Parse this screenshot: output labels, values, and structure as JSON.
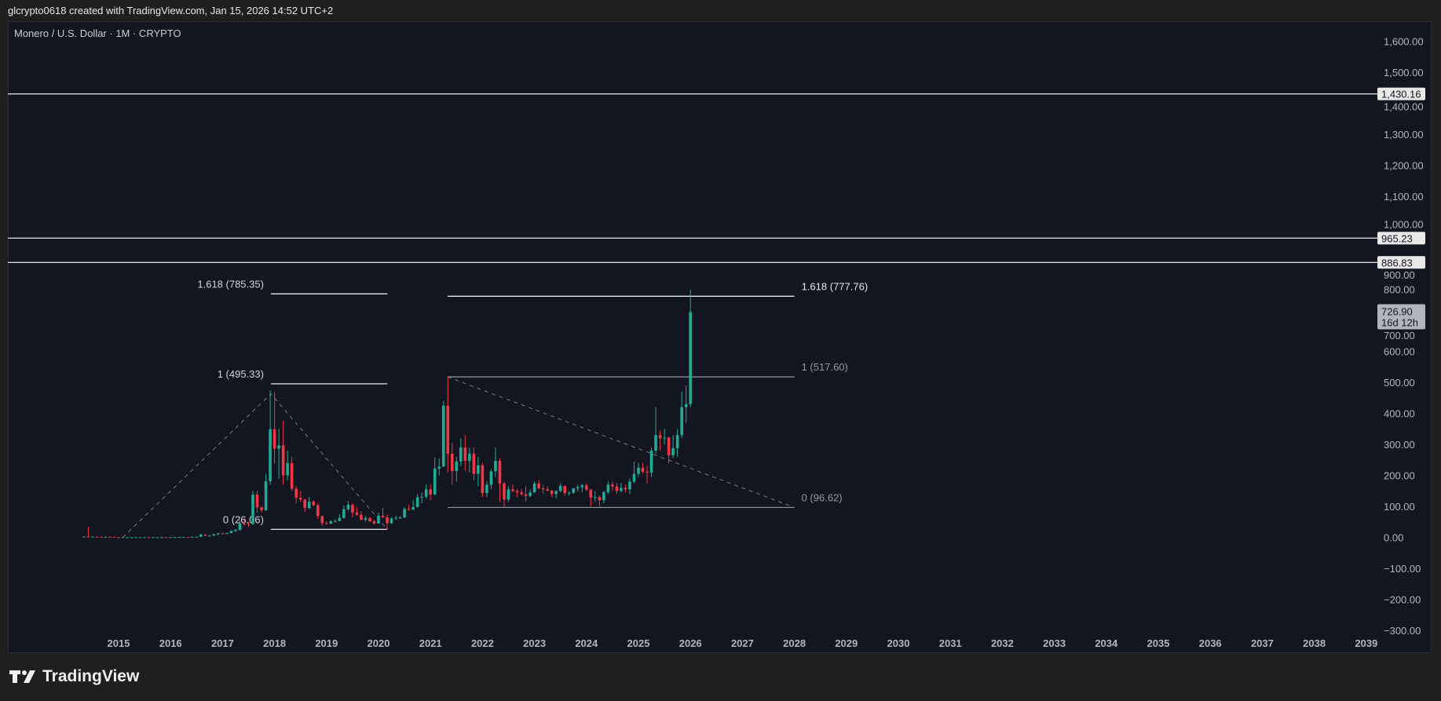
{
  "header": {
    "attribution": "glcrypto0618 created with TradingView.com, Jan 15, 2026 14:52 UTC+2"
  },
  "footer": {
    "brand": "TradingView"
  },
  "colors": {
    "background": "#131621",
    "up": "#22ab94",
    "down": "#f23645",
    "line": "#ffffff",
    "fib_grey": "#9598a1"
  },
  "chart_data": {
    "type": "candlestick",
    "title": "Monero / U.S. Dollar · 1M · CRYPTO",
    "ylim": [
      -300,
      1650
    ],
    "xlim": [
      2014,
      2039.3
    ],
    "y_ticks": [
      "1,600.00",
      "1,500.00",
      "1,400.00",
      "1,300.00",
      "1,200.00",
      "1,100.00",
      "1,000.00",
      "900.00",
      "800.00",
      "700.00",
      "600.00",
      "500.00",
      "400.00",
      "300.00",
      "200.00",
      "100.00",
      "0.00",
      "−100.00",
      "−200.00",
      "−300.00"
    ],
    "y_tick_values": [
      1600,
      1500,
      1400,
      1300,
      1200,
      1100,
      1000,
      900,
      800,
      700,
      600,
      500,
      400,
      300,
      200,
      100,
      0,
      -100,
      -200,
      -300
    ],
    "x_ticks": [
      "2015",
      "2016",
      "2017",
      "2018",
      "2019",
      "2020",
      "2021",
      "2022",
      "2023",
      "2024",
      "2025",
      "2026",
      "2027",
      "2028",
      "2029",
      "2030",
      "2031",
      "2032",
      "2033",
      "2034",
      "2035",
      "2036",
      "2037",
      "2038",
      "2039"
    ],
    "horizontal_lines": [
      {
        "value": 1430.16,
        "label": "1,430.16"
      },
      {
        "value": 965.23,
        "label": "965.23"
      },
      {
        "value": 886.83,
        "label": "886.83"
      }
    ],
    "last_price": {
      "value": 726.9,
      "label": "726.90",
      "countdown": "16d 12h"
    },
    "fib_extensions": [
      {
        "start": 2017.93,
        "end": 2020.17,
        "trend": [
          [
            2015.08,
            0
          ],
          [
            2017.93,
            463
          ],
          [
            2020.17,
            26.06
          ]
        ],
        "levels": [
          {
            "label": "1.618 (785.35)",
            "value": 785.35,
            "color": "#ffffff"
          },
          {
            "label": "1 (495.33)",
            "value": 495.33,
            "color": "#ffffff"
          },
          {
            "label": "0 (26.06)",
            "value": 26.06,
            "color": "#ffffff"
          }
        ],
        "label_side": "left"
      },
      {
        "start": 2021.33,
        "end": 2028.0,
        "trend": [
          [
            2021.33,
            517.6
          ],
          [
            2028.0,
            96.62
          ]
        ],
        "levels": [
          {
            "label": "1.618 (777.76)",
            "value": 777.76,
            "color": "#ffffff"
          },
          {
            "label": "1 (517.60)",
            "value": 517.6,
            "color": "#9598a1"
          },
          {
            "label": "0 (96.62)",
            "value": 96.62,
            "color": "#9598a1"
          }
        ],
        "label_side": "right"
      }
    ],
    "candles": [
      [
        "2014-05",
        1.5,
        3,
        1,
        2.5
      ],
      [
        "2014-06",
        2.5,
        35,
        1.5,
        2
      ],
      [
        "2014-07",
        2,
        3,
        1.5,
        2.5
      ],
      [
        "2014-08",
        2.5,
        3,
        1.5,
        2
      ],
      [
        "2014-09",
        2,
        2.5,
        1.5,
        1.8
      ],
      [
        "2014-10",
        1.8,
        2.5,
        1.5,
        2
      ],
      [
        "2014-11",
        2,
        2.2,
        1.5,
        1.6
      ],
      [
        "2014-12",
        1.6,
        1.8,
        0.5,
        0.5
      ],
      [
        "2015-01",
        0.5,
        1,
        0.3,
        0.4
      ],
      [
        "2015-02",
        0.4,
        0.6,
        0.3,
        0.5
      ],
      [
        "2015-03",
        0.5,
        0.7,
        0.4,
        0.5
      ],
      [
        "2015-04",
        0.5,
        0.6,
        0.4,
        0.5
      ],
      [
        "2015-05",
        0.5,
        0.6,
        0.4,
        0.5
      ],
      [
        "2015-06",
        0.5,
        0.6,
        0.4,
        0.5
      ],
      [
        "2015-07",
        0.5,
        0.8,
        0.4,
        0.6
      ],
      [
        "2015-08",
        0.6,
        0.8,
        0.4,
        0.5
      ],
      [
        "2015-09",
        0.5,
        0.6,
        0.4,
        0.5
      ],
      [
        "2015-10",
        0.5,
        0.6,
        0.4,
        0.5
      ],
      [
        "2015-11",
        0.5,
        0.7,
        0.4,
        0.6
      ],
      [
        "2015-12",
        0.6,
        0.7,
        0.4,
        0.5
      ],
      [
        "2016-01",
        0.5,
        0.6,
        0.4,
        0.5
      ],
      [
        "2016-02",
        0.5,
        1.2,
        0.5,
        1
      ],
      [
        "2016-03",
        1,
        1.5,
        0.8,
        1.2
      ],
      [
        "2016-04",
        1.2,
        1.5,
        1,
        1.3
      ],
      [
        "2016-05",
        1.3,
        1.5,
        1,
        1.2
      ],
      [
        "2016-06",
        1.2,
        2,
        1,
        1.8
      ],
      [
        "2016-07",
        1.8,
        2.5,
        1.5,
        2
      ],
      [
        "2016-08",
        2,
        12,
        2,
        9
      ],
      [
        "2016-09",
        9,
        11,
        4,
        6
      ],
      [
        "2016-10",
        6,
        7,
        4,
        6
      ],
      [
        "2016-11",
        6,
        12,
        5,
        10
      ],
      [
        "2016-12",
        10,
        15,
        7,
        13
      ],
      [
        "2017-01",
        13,
        15,
        10,
        12
      ],
      [
        "2017-02",
        12,
        15,
        11,
        14
      ],
      [
        "2017-03",
        14,
        24,
        13,
        20
      ],
      [
        "2017-04",
        20,
        27,
        18,
        24
      ],
      [
        "2017-05",
        24,
        55,
        22,
        45
      ],
      [
        "2017-06",
        45,
        58,
        38,
        44
      ],
      [
        "2017-07",
        44,
        50,
        34,
        43
      ],
      [
        "2017-08",
        43,
        150,
        40,
        138
      ],
      [
        "2017-09",
        138,
        150,
        80,
        97
      ],
      [
        "2017-10",
        97,
        100,
        80,
        88
      ],
      [
        "2017-11",
        88,
        205,
        85,
        181
      ],
      [
        "2017-12",
        181,
        474,
        170,
        349
      ],
      [
        "2018-01",
        349,
        469,
        238,
        286
      ],
      [
        "2018-02",
        286,
        350,
        190,
        297
      ],
      [
        "2018-03",
        297,
        377,
        170,
        200
      ],
      [
        "2018-04",
        200,
        280,
        185,
        240
      ],
      [
        "2018-05",
        240,
        260,
        150,
        157
      ],
      [
        "2018-06",
        157,
        165,
        110,
        128
      ],
      [
        "2018-07",
        128,
        150,
        115,
        122
      ],
      [
        "2018-08",
        122,
        125,
        82,
        95
      ],
      [
        "2018-09",
        95,
        130,
        90,
        115
      ],
      [
        "2018-10",
        115,
        120,
        100,
        104
      ],
      [
        "2018-11",
        104,
        110,
        60,
        69
      ],
      [
        "2018-12",
        69,
        70,
        38,
        46
      ],
      [
        "2019-01",
        46,
        52,
        42,
        45
      ],
      [
        "2019-02",
        45,
        55,
        42,
        52
      ],
      [
        "2019-03",
        52,
        58,
        49,
        53
      ],
      [
        "2019-04",
        53,
        75,
        52,
        63
      ],
      [
        "2019-05",
        63,
        104,
        60,
        91
      ],
      [
        "2019-06",
        91,
        118,
        85,
        105
      ],
      [
        "2019-07",
        105,
        110,
        65,
        80
      ],
      [
        "2019-08",
        80,
        98,
        70,
        73
      ],
      [
        "2019-09",
        73,
        85,
        55,
        57
      ],
      [
        "2019-10",
        57,
        68,
        50,
        62
      ],
      [
        "2019-11",
        62,
        66,
        50,
        52
      ],
      [
        "2019-12",
        52,
        56,
        42,
        45
      ],
      [
        "2020-01",
        45,
        80,
        44,
        70
      ],
      [
        "2020-02",
        70,
        95,
        62,
        65
      ],
      [
        "2020-03",
        65,
        74,
        26,
        46
      ],
      [
        "2020-04",
        46,
        65,
        43,
        61
      ],
      [
        "2020-05",
        61,
        70,
        56,
        63
      ],
      [
        "2020-06",
        63,
        70,
        60,
        64
      ],
      [
        "2020-07",
        64,
        98,
        63,
        92
      ],
      [
        "2020-08",
        92,
        105,
        86,
        90
      ],
      [
        "2020-09",
        90,
        120,
        87,
        98
      ],
      [
        "2020-10",
        98,
        140,
        97,
        129
      ],
      [
        "2020-11",
        129,
        145,
        110,
        131
      ],
      [
        "2020-12",
        131,
        170,
        125,
        155
      ],
      [
        "2021-01",
        155,
        170,
        120,
        138
      ],
      [
        "2021-02",
        138,
        258,
        137,
        222
      ],
      [
        "2021-03",
        222,
        255,
        200,
        228
      ],
      [
        "2021-04",
        228,
        440,
        228,
        425
      ],
      [
        "2021-05",
        425,
        517,
        208,
        270
      ],
      [
        "2021-06",
        270,
        305,
        170,
        214
      ],
      [
        "2021-07",
        214,
        260,
        180,
        245
      ],
      [
        "2021-08",
        245,
        320,
        230,
        290
      ],
      [
        "2021-09",
        290,
        330,
        215,
        247
      ],
      [
        "2021-10",
        247,
        290,
        210,
        270
      ],
      [
        "2021-11",
        270,
        290,
        185,
        205
      ],
      [
        "2021-12",
        205,
        260,
        165,
        232
      ],
      [
        "2022-01",
        232,
        240,
        130,
        143
      ],
      [
        "2022-02",
        143,
        180,
        130,
        170
      ],
      [
        "2022-03",
        170,
        220,
        155,
        213
      ],
      [
        "2022-04",
        213,
        290,
        195,
        247
      ],
      [
        "2022-05",
        247,
        255,
        115,
        174
      ],
      [
        "2022-06",
        174,
        180,
        97,
        122
      ],
      [
        "2022-07",
        122,
        165,
        115,
        155
      ],
      [
        "2022-08",
        155,
        170,
        145,
        150
      ],
      [
        "2022-09",
        150,
        155,
        130,
        145
      ],
      [
        "2022-10",
        145,
        155,
        135,
        139
      ],
      [
        "2022-11",
        139,
        165,
        115,
        134
      ],
      [
        "2022-12",
        134,
        155,
        130,
        145
      ],
      [
        "2023-01",
        145,
        180,
        145,
        174
      ],
      [
        "2023-02",
        174,
        185,
        155,
        158
      ],
      [
        "2023-03",
        158,
        170,
        140,
        155
      ],
      [
        "2023-04",
        155,
        165,
        148,
        151
      ],
      [
        "2023-05",
        151,
        152,
        130,
        140
      ],
      [
        "2023-06",
        140,
        152,
        125,
        150
      ],
      [
        "2023-07",
        150,
        175,
        145,
        166
      ],
      [
        "2023-08",
        166,
        167,
        135,
        143
      ],
      [
        "2023-09",
        143,
        148,
        135,
        144
      ],
      [
        "2023-10",
        144,
        160,
        140,
        158
      ],
      [
        "2023-11",
        158,
        170,
        148,
        162
      ],
      [
        "2023-12",
        162,
        173,
        145,
        168
      ],
      [
        "2024-01",
        168,
        175,
        150,
        154
      ],
      [
        "2024-02",
        154,
        155,
        100,
        128
      ],
      [
        "2024-03",
        128,
        150,
        115,
        130
      ],
      [
        "2024-04",
        130,
        135,
        100,
        120
      ],
      [
        "2024-05",
        120,
        150,
        110,
        146
      ],
      [
        "2024-06",
        146,
        180,
        140,
        170
      ],
      [
        "2024-07",
        170,
        180,
        150,
        164
      ],
      [
        "2024-08",
        164,
        176,
        140,
        150
      ],
      [
        "2024-09",
        150,
        175,
        145,
        160
      ],
      [
        "2024-10",
        160,
        170,
        145,
        155
      ],
      [
        "2024-11",
        155,
        190,
        140,
        180
      ],
      [
        "2024-12",
        180,
        245,
        175,
        205
      ],
      [
        "2025-01",
        205,
        240,
        195,
        225
      ],
      [
        "2025-02",
        225,
        240,
        205,
        212
      ],
      [
        "2025-03",
        212,
        230,
        175,
        209
      ],
      [
        "2025-04",
        209,
        290,
        195,
        280
      ],
      [
        "2025-05",
        280,
        420,
        270,
        330
      ],
      [
        "2025-06",
        330,
        345,
        280,
        320
      ],
      [
        "2025-07",
        320,
        350,
        300,
        322
      ],
      [
        "2025-08",
        322,
        325,
        240,
        265
      ],
      [
        "2025-09",
        265,
        330,
        255,
        288
      ],
      [
        "2025-10",
        288,
        350,
        260,
        330
      ],
      [
        "2025-11",
        330,
        470,
        320,
        420
      ],
      [
        "2025-12",
        420,
        490,
        370,
        430
      ],
      [
        "2026-01",
        430,
        800,
        420,
        726.9
      ]
    ]
  }
}
